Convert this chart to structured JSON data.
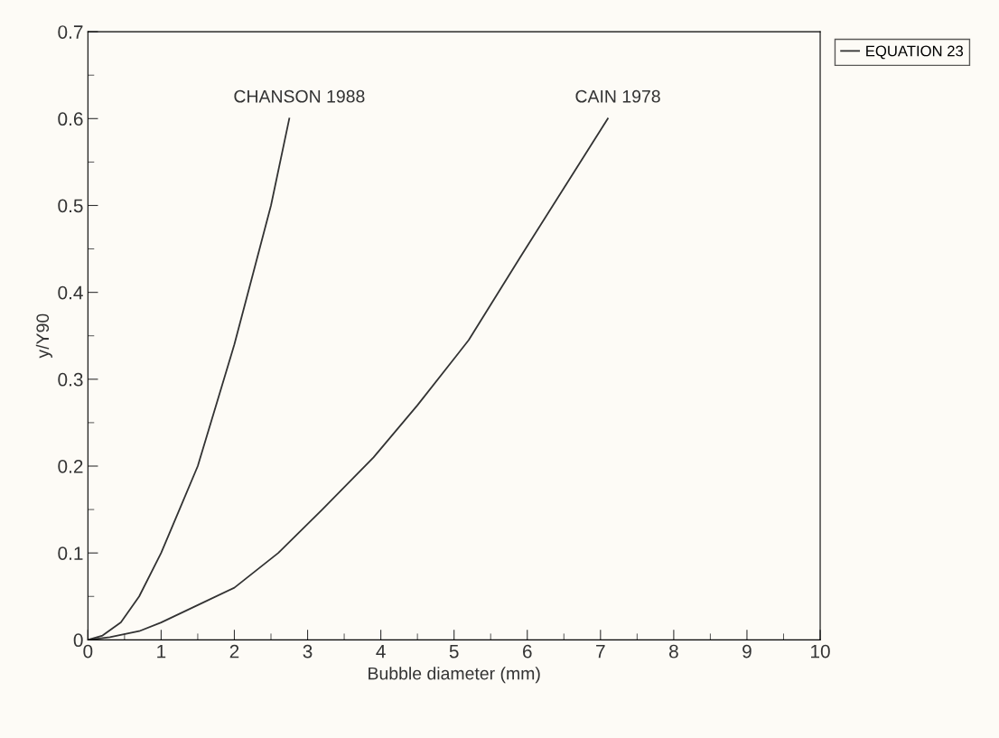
{
  "chart_data": {
    "type": "line",
    "xlabel": "Bubble diameter (mm)",
    "ylabel": "y/Y90",
    "legend_title": "EQUATION 23",
    "legend": "top right",
    "series": [
      {
        "name": "CHANSON 1988",
        "color": "#333333",
        "x": [
          0,
          0.2,
          0.45,
          0.7,
          1.0,
          1.25,
          1.5,
          1.75,
          2.0,
          2.25,
          2.5,
          2.75
        ],
        "values": [
          0,
          0.005,
          0.02,
          0.05,
          0.1,
          0.15,
          0.2,
          0.27,
          0.34,
          0.42,
          0.5,
          0.6
        ]
      },
      {
        "name": "CAIN 1978",
        "color": "#333333",
        "x": [
          0,
          0.3,
          0.7,
          1.0,
          1.5,
          2.0,
          2.6,
          3.2,
          3.9,
          4.5,
          5.2,
          5.9,
          6.5,
          7.1
        ],
        "values": [
          0,
          0.003,
          0.01,
          0.02,
          0.04,
          0.06,
          0.1,
          0.15,
          0.21,
          0.27,
          0.345,
          0.44,
          0.52,
          0.6
        ]
      }
    ],
    "xlim": [
      0,
      10
    ],
    "xticks": [
      0,
      1,
      2,
      3,
      4,
      5,
      6,
      7,
      8,
      9,
      10
    ],
    "ylim": [
      0,
      0.7
    ],
    "yticks": [
      0,
      0.1,
      0.2,
      0.3,
      0.4,
      0.5,
      0.6,
      0.7
    ],
    "grid": false,
    "marker": "none",
    "line_style": "solid"
  }
}
